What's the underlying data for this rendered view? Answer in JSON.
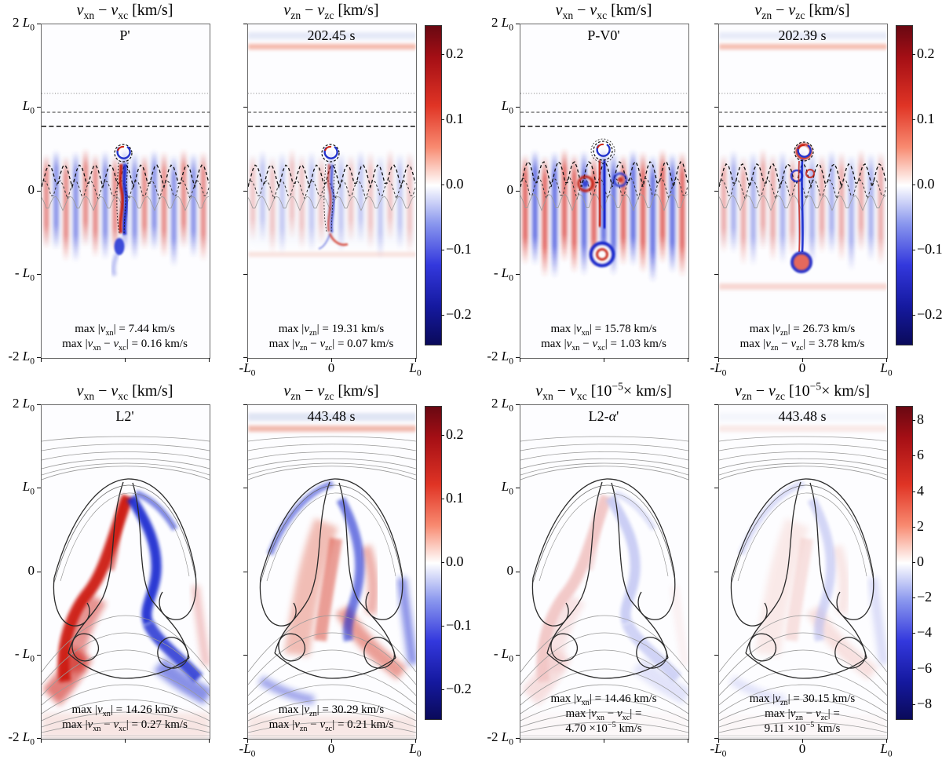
{
  "chart_data": {
    "type": "heatmap",
    "colormap": {
      "style": "diverging red-white-blue",
      "top_color": "#690812",
      "red": "#e03425",
      "mid_color": "#ffffff",
      "blue": "#3338dd",
      "bottom_color": "#0a0a5a"
    },
    "x_axis": {
      "range": [
        "-L0",
        "L0"
      ]
    },
    "y_axis": {
      "range": [
        "-2 L0",
        "2 L0"
      ]
    },
    "rows": [
      {
        "panels": [
          {
            "id": "P-vx",
            "title": "*v*_{xn} − *v*_{xc} [km/s]",
            "label": "P'",
            "max_lines": [
              "max |*v*_{xn}| = 7.44 km/s",
              "max |*v*_{xn} − *v*_{xc}| = 0.16 km/s"
            ],
            "y_tick_labels": [
              "2 *L*_{0}",
              "*L*_{0}",
              "0",
              "- *L*_{0}",
              "-2 *L*_{0}"
            ],
            "art": "plume1"
          },
          {
            "id": "P-vz",
            "title": "*v*_{zn} − *v*_{zc} [km/s]",
            "label": "202.45 s",
            "max_lines": [
              "max |*v*_{zn}| = 19.31 km/s",
              "max |*v*_{zn} − *v*_{zc}| = 0.07 km/s"
            ],
            "x_tick_labels": [
              "-*L*_{0}",
              "0",
              "*L*_{0}"
            ],
            "art": "plume2"
          },
          {
            "id": "PV0-vx",
            "title": "*v*_{xn} − *v*_{xc} [km/s]",
            "label": "P-V0'",
            "max_lines": [
              "max |*v*_{xn}| = 15.78 km/s",
              "max |*v*_{xn} − *v*_{xc}| = 1.03 km/s"
            ],
            "y_tick_labels": [
              "2 *L*_{0}",
              "*L*_{0}",
              "0",
              "- *L*_{0}",
              "-2 *L*_{0}"
            ],
            "art": "plume3"
          },
          {
            "id": "PV0-vz",
            "title": "*v*_{zn} − *v*_{zc} [km/s]",
            "label": "202.39 s",
            "max_lines": [
              "max |*v*_{zn}| = 26.73 km/s",
              "max |*v*_{zn} − *v*_{zc}| = 3.78 km/s"
            ],
            "x_tick_labels": [
              "-*L*_{0}",
              "0",
              "*L*_{0}"
            ],
            "art": "plume4"
          }
        ],
        "colorbars": [
          {
            "vmax": 0.245,
            "ticks": [
              {
                "v": 0.2,
                "label": "0.2"
              },
              {
                "v": 0.1,
                "label": "0.1"
              },
              {
                "v": 0,
                "label": "0.0"
              },
              {
                "v": -0.1,
                "label": "−0.1"
              },
              {
                "v": -0.2,
                "label": "−0.2"
              }
            ]
          },
          {
            "vmax": 0.245,
            "ticks": [
              {
                "v": 0.2,
                "label": "0.2"
              },
              {
                "v": 0.1,
                "label": "0.1"
              },
              {
                "v": 0,
                "label": "0.0"
              },
              {
                "v": -0.1,
                "label": "−0.1"
              },
              {
                "v": -0.2,
                "label": "−0.2"
              }
            ]
          }
        ]
      },
      {
        "panels": [
          {
            "id": "L2-vx",
            "title": "*v*_{xn} − *v*_{xc} [km/s]",
            "label": "L2'",
            "max_lines": [
              "max |*v*_{xn}| = 14.26 km/s",
              "max |*v*_{xn} − *v*_{xc}| = 0.27 km/s"
            ],
            "y_tick_labels": [
              "2 *L*_{0}",
              "*L*_{0}",
              "0",
              "- *L*_{0}",
              "-2 *L*_{0}"
            ],
            "art": "mush1"
          },
          {
            "id": "L2-vz",
            "title": "*v*_{zn} − *v*_{zc} [km/s]",
            "label": "443.48 s",
            "max_lines": [
              "max |*v*_{zn}| = 30.29 km/s",
              "max |*v*_{zn} − *v*_{zc}| = 0.21 km/s"
            ],
            "x_tick_labels": [
              "-*L*_{0}",
              "0",
              "*L*_{0}"
            ],
            "art": "mush2"
          },
          {
            "id": "L2a-vx",
            "title": "*v*_{xn} − *v*_{xc} [10^{−5}× km/s]",
            "label": "L2-*α*'",
            "max_lines": [
              "max |*v*_{xn}| = 14.46 km/s",
              "max |*v*_{xn} − *v*_{xc}| =",
              "4.70 ×10^{−5} km/s"
            ],
            "y_tick_labels": [
              "2 *L*_{0}",
              "*L*_{0}",
              "0",
              "- *L*_{0}",
              "-2 *L*_{0}"
            ],
            "art": "mush3"
          },
          {
            "id": "L2a-vz",
            "title": "*v*_{zn} − *v*_{zc} [10^{−5}× km/s]",
            "label": "443.48 s",
            "max_lines": [
              "max |*v*_{zn}| = 30.15 km/s",
              "max |*v*_{zn} − *v*_{zc}| =",
              "9.11 ×10^{−5} km/s"
            ],
            "x_tick_labels": [
              "-*L*_{0}",
              "0",
              "*L*_{0}"
            ],
            "art": "mush4"
          }
        ],
        "colorbars": [
          {
            "vmax": 0.245,
            "ticks": [
              {
                "v": 0.2,
                "label": "0.2"
              },
              {
                "v": 0.1,
                "label": "0.1"
              },
              {
                "v": 0,
                "label": "0.0"
              },
              {
                "v": -0.1,
                "label": "−0.1"
              },
              {
                "v": -0.2,
                "label": "−0.2"
              }
            ]
          },
          {
            "vmax": 8.8,
            "ticks": [
              {
                "v": 8,
                "label": "8"
              },
              {
                "v": 6,
                "label": "6"
              },
              {
                "v": 4,
                "label": "4"
              },
              {
                "v": 2,
                "label": "2"
              },
              {
                "v": 0,
                "label": "0"
              },
              {
                "v": -2,
                "label": "−2"
              },
              {
                "v": -4,
                "label": "−4"
              },
              {
                "v": -6,
                "label": "−6"
              },
              {
                "v": -8,
                "label": "−8"
              }
            ]
          }
        ]
      }
    ]
  }
}
